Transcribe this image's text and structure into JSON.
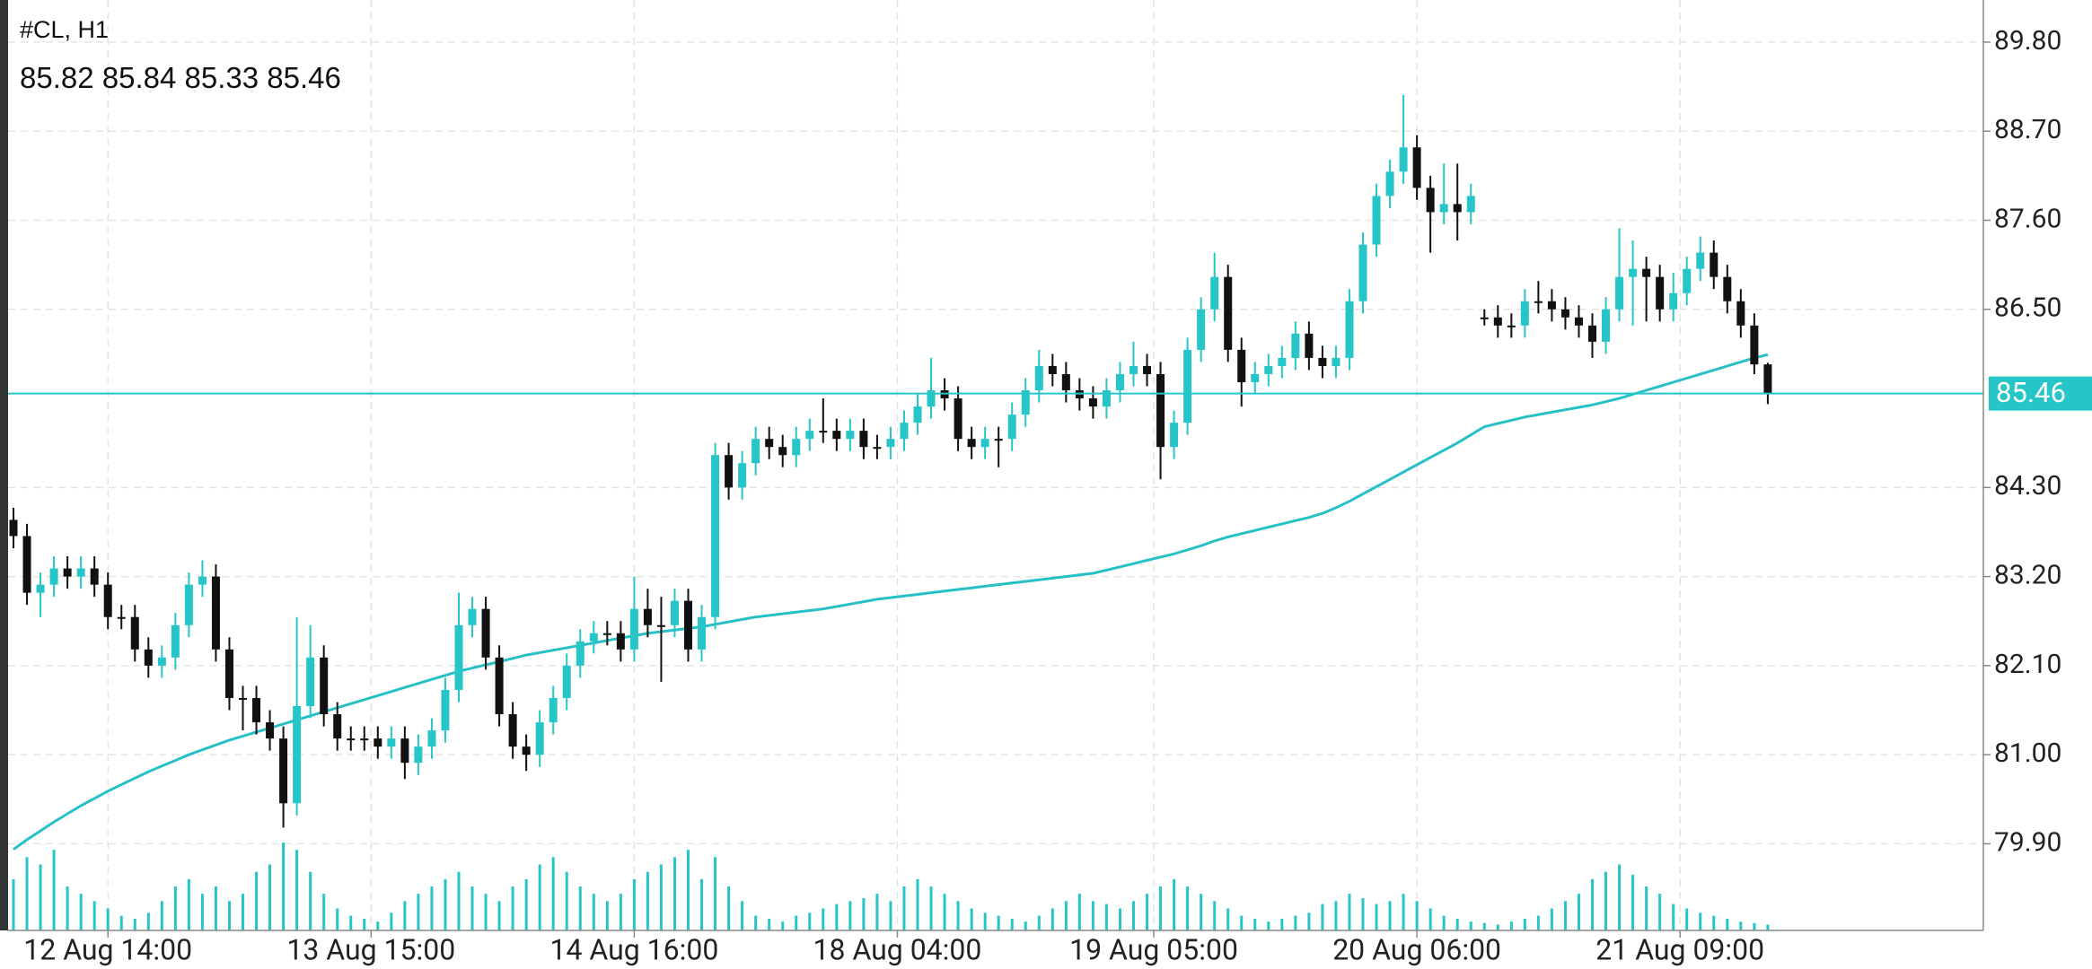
{
  "chart_data": {
    "type": "candlestick",
    "title": "#CL, H1",
    "up_color": "#26c6c8",
    "down_color": "#111111",
    "ma_color": "#26c0c6",
    "volume_color": "#26c6c8",
    "grid": true,
    "ylim": [
      78.83,
      90.32
    ],
    "yticks": [
      {
        "value": 89.8,
        "label": "89.80"
      },
      {
        "value": 88.7,
        "label": "88.70"
      },
      {
        "value": 87.6,
        "label": "87.60"
      },
      {
        "value": 86.5,
        "label": "86.50"
      },
      {
        "value": 84.3,
        "label": "84.30"
      },
      {
        "value": 83.2,
        "label": "83.20"
      },
      {
        "value": 82.1,
        "label": "82.10"
      },
      {
        "value": 81.0,
        "label": "81.00"
      },
      {
        "value": 79.9,
        "label": "79.90"
      }
    ],
    "xticks": [
      {
        "value": 7,
        "label": "12 Aug 14:00"
      },
      {
        "value": 26.5,
        "label": "13 Aug 15:00"
      },
      {
        "value": 46,
        "label": "14 Aug 16:00"
      },
      {
        "value": 65.5,
        "label": "18 Aug 04:00"
      },
      {
        "value": 84.5,
        "label": "19 Aug 05:00"
      },
      {
        "value": 104,
        "label": "20 Aug 06:00"
      },
      {
        "value": 123.5,
        "label": "21 Aug 09:00"
      }
    ],
    "ohlc": [
      [
        83.9,
        84.05,
        83.55,
        83.7
      ],
      [
        83.7,
        83.85,
        82.85,
        83.0
      ],
      [
        83.0,
        83.25,
        82.7,
        83.1
      ],
      [
        83.1,
        83.45,
        82.95,
        83.3
      ],
      [
        83.3,
        83.45,
        83.05,
        83.2
      ],
      [
        83.2,
        83.45,
        83.05,
        83.3
      ],
      [
        83.3,
        83.45,
        82.95,
        83.1
      ],
      [
        83.1,
        83.25,
        82.55,
        82.7
      ],
      [
        82.7,
        82.85,
        82.55,
        82.7
      ],
      [
        82.7,
        82.85,
        82.15,
        82.3
      ],
      [
        82.3,
        82.45,
        81.95,
        82.1
      ],
      [
        82.1,
        82.35,
        81.95,
        82.2
      ],
      [
        82.2,
        82.75,
        82.05,
        82.6
      ],
      [
        82.6,
        83.25,
        82.45,
        83.1
      ],
      [
        83.1,
        83.4,
        82.95,
        83.2
      ],
      [
        83.2,
        83.35,
        82.15,
        82.3
      ],
      [
        82.3,
        82.45,
        81.55,
        81.7
      ],
      [
        81.7,
        81.85,
        81.3,
        81.7
      ],
      [
        81.7,
        81.85,
        81.25,
        81.4
      ],
      [
        81.4,
        81.55,
        81.05,
        81.2
      ],
      [
        81.2,
        81.35,
        80.1,
        80.4
      ],
      [
        80.4,
        82.7,
        80.25,
        81.6
      ],
      [
        81.6,
        82.6,
        81.45,
        82.2
      ],
      [
        82.2,
        82.35,
        81.35,
        81.5
      ],
      [
        81.5,
        81.65,
        81.05,
        81.2
      ],
      [
        81.2,
        81.35,
        81.05,
        81.2
      ],
      [
        81.2,
        81.35,
        81.05,
        81.2
      ],
      [
        81.2,
        81.35,
        80.95,
        81.1
      ],
      [
        81.1,
        81.35,
        80.95,
        81.2
      ],
      [
        81.2,
        81.35,
        80.7,
        80.9
      ],
      [
        80.9,
        81.25,
        80.75,
        81.1
      ],
      [
        81.1,
        81.45,
        80.95,
        81.3
      ],
      [
        81.3,
        81.95,
        81.15,
        81.8
      ],
      [
        81.8,
        83.0,
        81.65,
        82.6
      ],
      [
        82.6,
        82.95,
        82.45,
        82.8
      ],
      [
        82.8,
        82.95,
        82.05,
        82.2
      ],
      [
        82.2,
        82.35,
        81.35,
        81.5
      ],
      [
        81.5,
        81.65,
        80.95,
        81.1
      ],
      [
        81.1,
        81.25,
        80.8,
        81.0
      ],
      [
        81.0,
        81.55,
        80.85,
        81.4
      ],
      [
        81.4,
        81.85,
        81.25,
        81.7
      ],
      [
        81.7,
        82.25,
        81.55,
        82.1
      ],
      [
        82.1,
        82.55,
        81.95,
        82.4
      ],
      [
        82.4,
        82.65,
        82.25,
        82.5
      ],
      [
        82.5,
        82.65,
        82.35,
        82.5
      ],
      [
        82.5,
        82.65,
        82.15,
        82.3
      ],
      [
        82.3,
        83.2,
        82.15,
        82.8
      ],
      [
        82.8,
        83.05,
        82.45,
        82.6
      ],
      [
        82.6,
        82.95,
        81.9,
        82.6
      ],
      [
        82.6,
        83.05,
        82.45,
        82.9
      ],
      [
        82.9,
        83.05,
        82.15,
        82.3
      ],
      [
        82.3,
        82.85,
        82.15,
        82.7
      ],
      [
        82.7,
        84.85,
        82.55,
        84.7
      ],
      [
        84.7,
        84.85,
        84.15,
        84.3
      ],
      [
        84.3,
        84.75,
        84.15,
        84.6
      ],
      [
        84.6,
        85.05,
        84.45,
        84.9
      ],
      [
        84.9,
        85.05,
        84.65,
        84.8
      ],
      [
        84.8,
        84.95,
        84.55,
        84.7
      ],
      [
        84.7,
        85.05,
        84.55,
        84.9
      ],
      [
        84.9,
        85.15,
        84.75,
        85.0
      ],
      [
        85.0,
        85.4,
        84.85,
        85.0
      ],
      [
        85.0,
        85.15,
        84.75,
        84.9
      ],
      [
        84.9,
        85.15,
        84.75,
        85.0
      ],
      [
        85.0,
        85.15,
        84.65,
        84.8
      ],
      [
        84.8,
        84.95,
        84.65,
        84.8
      ],
      [
        84.8,
        85.05,
        84.65,
        84.9
      ],
      [
        84.9,
        85.25,
        84.75,
        85.1
      ],
      [
        85.1,
        85.45,
        84.95,
        85.3
      ],
      [
        85.3,
        85.9,
        85.15,
        85.5
      ],
      [
        85.5,
        85.65,
        85.25,
        85.4
      ],
      [
        85.4,
        85.55,
        84.75,
        84.9
      ],
      [
        84.9,
        85.05,
        84.65,
        84.8
      ],
      [
        84.8,
        85.05,
        84.65,
        84.9
      ],
      [
        84.9,
        85.05,
        84.55,
        84.9
      ],
      [
        84.9,
        85.35,
        84.75,
        85.2
      ],
      [
        85.2,
        85.65,
        85.05,
        85.5
      ],
      [
        85.5,
        86.0,
        85.35,
        85.8
      ],
      [
        85.8,
        85.95,
        85.55,
        85.7
      ],
      [
        85.7,
        85.85,
        85.35,
        85.5
      ],
      [
        85.5,
        85.65,
        85.25,
        85.4
      ],
      [
        85.4,
        85.55,
        85.15,
        85.3
      ],
      [
        85.3,
        85.65,
        85.15,
        85.5
      ],
      [
        85.5,
        85.85,
        85.35,
        85.7
      ],
      [
        85.7,
        86.1,
        85.55,
        85.8
      ],
      [
        85.8,
        85.95,
        85.55,
        85.7
      ],
      [
        85.7,
        85.85,
        84.4,
        84.8
      ],
      [
        84.8,
        85.25,
        84.65,
        85.1
      ],
      [
        85.1,
        86.15,
        84.95,
        86.0
      ],
      [
        86.0,
        86.65,
        85.85,
        86.5
      ],
      [
        86.5,
        87.2,
        86.35,
        86.9
      ],
      [
        86.9,
        87.05,
        85.85,
        86.0
      ],
      [
        86.0,
        86.15,
        85.3,
        85.6
      ],
      [
        85.6,
        85.85,
        85.45,
        85.7
      ],
      [
        85.7,
        85.95,
        85.55,
        85.8
      ],
      [
        85.8,
        86.05,
        85.65,
        85.9
      ],
      [
        85.9,
        86.35,
        85.75,
        86.2
      ],
      [
        86.2,
        86.35,
        85.75,
        85.9
      ],
      [
        85.9,
        86.05,
        85.65,
        85.8
      ],
      [
        85.8,
        86.05,
        85.65,
        85.9
      ],
      [
        85.9,
        86.75,
        85.75,
        86.6
      ],
      [
        86.6,
        87.45,
        86.45,
        87.3
      ],
      [
        87.3,
        88.05,
        87.15,
        87.9
      ],
      [
        87.9,
        88.35,
        87.75,
        88.2
      ],
      [
        88.2,
        89.15,
        88.05,
        88.5
      ],
      [
        88.5,
        88.65,
        87.85,
        88.0
      ],
      [
        88.0,
        88.15,
        87.2,
        87.7
      ],
      [
        87.7,
        88.3,
        87.55,
        87.8
      ],
      [
        87.8,
        88.3,
        87.35,
        87.7
      ],
      [
        87.7,
        88.05,
        87.55,
        87.9
      ],
      [
        86.4,
        86.5,
        86.3,
        86.4
      ],
      [
        86.4,
        86.55,
        86.15,
        86.3
      ],
      [
        86.3,
        86.45,
        86.15,
        86.3
      ],
      [
        86.3,
        86.75,
        86.15,
        86.6
      ],
      [
        86.6,
        86.85,
        86.45,
        86.6
      ],
      [
        86.6,
        86.75,
        86.35,
        86.5
      ],
      [
        86.5,
        86.65,
        86.25,
        86.4
      ],
      [
        86.4,
        86.55,
        86.15,
        86.3
      ],
      [
        86.3,
        86.45,
        85.9,
        86.1
      ],
      [
        86.1,
        86.65,
        85.95,
        86.5
      ],
      [
        86.5,
        87.5,
        86.35,
        86.9
      ],
      [
        86.9,
        87.35,
        86.3,
        87.0
      ],
      [
        87.0,
        87.15,
        86.35,
        86.9
      ],
      [
        86.9,
        87.05,
        86.35,
        86.5
      ],
      [
        86.5,
        86.95,
        86.35,
        86.7
      ],
      [
        86.7,
        87.15,
        86.55,
        87.0
      ],
      [
        87.0,
        87.4,
        86.85,
        87.2
      ],
      [
        87.2,
        87.35,
        86.75,
        86.9
      ],
      [
        86.9,
        87.05,
        86.45,
        86.6
      ],
      [
        86.6,
        86.75,
        86.15,
        86.3
      ],
      [
        86.3,
        86.45,
        85.7,
        85.82
      ],
      [
        85.82,
        85.84,
        85.33,
        85.46
      ]
    ],
    "moving_average": [
      79.83,
      79.95,
      80.06,
      80.17,
      80.27,
      80.37,
      80.46,
      80.55,
      80.63,
      80.71,
      80.79,
      80.86,
      80.93,
      81.0,
      81.06,
      81.12,
      81.18,
      81.23,
      81.28,
      81.33,
      81.38,
      81.43,
      81.48,
      81.53,
      81.58,
      81.63,
      81.68,
      81.73,
      81.78,
      81.83,
      81.88,
      81.93,
      81.98,
      82.03,
      82.07,
      82.11,
      82.15,
      82.19,
      82.23,
      82.26,
      82.29,
      82.32,
      82.35,
      82.38,
      82.41,
      82.44,
      82.47,
      82.5,
      82.52,
      82.54,
      82.56,
      82.58,
      82.61,
      82.64,
      82.67,
      82.7,
      82.72,
      82.74,
      82.76,
      82.78,
      82.8,
      82.83,
      82.86,
      82.89,
      82.92,
      82.94,
      82.96,
      82.98,
      83.0,
      83.02,
      83.04,
      83.06,
      83.08,
      83.1,
      83.12,
      83.14,
      83.16,
      83.18,
      83.2,
      83.22,
      83.24,
      83.28,
      83.32,
      83.36,
      83.4,
      83.44,
      83.48,
      83.53,
      83.58,
      83.64,
      83.69,
      83.73,
      83.77,
      83.81,
      83.85,
      83.89,
      83.93,
      83.98,
      84.05,
      84.13,
      84.22,
      84.31,
      84.4,
      84.49,
      84.58,
      84.67,
      84.76,
      84.85,
      84.95,
      85.05,
      85.09,
      85.13,
      85.17,
      85.2,
      85.23,
      85.26,
      85.29,
      85.32,
      85.36,
      85.4,
      85.45,
      85.5,
      85.55,
      85.6,
      85.65,
      85.7,
      85.75,
      85.8,
      85.85,
      85.9,
      85.94
    ],
    "volume": [
      35,
      50,
      45,
      55,
      30,
      25,
      20,
      15,
      10,
      8,
      12,
      20,
      30,
      35,
      25,
      30,
      20,
      25,
      40,
      45,
      60,
      55,
      40,
      25,
      15,
      10,
      8,
      6,
      12,
      20,
      25,
      30,
      35,
      40,
      30,
      25,
      20,
      30,
      35,
      45,
      50,
      40,
      30,
      25,
      20,
      25,
      35,
      40,
      45,
      50,
      55,
      35,
      50,
      30,
      20,
      10,
      8,
      6,
      10,
      12,
      15,
      18,
      20,
      22,
      25,
      20,
      30,
      35,
      30,
      25,
      20,
      15,
      12,
      10,
      8,
      6,
      10,
      15,
      20,
      25,
      20,
      18,
      15,
      20,
      25,
      30,
      35,
      30,
      25,
      20,
      15,
      10,
      8,
      6,
      8,
      10,
      12,
      18,
      20,
      25,
      22,
      18,
      20,
      25,
      20,
      15,
      10,
      8,
      6,
      5,
      4,
      6,
      8,
      10,
      15,
      20,
      25,
      35,
      40,
      45,
      38,
      30,
      25,
      18,
      15,
      12,
      10,
      8,
      6,
      5,
      4
    ]
  }
}
